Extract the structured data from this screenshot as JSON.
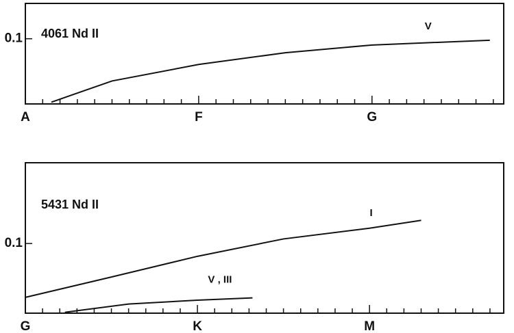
{
  "chart_data": [
    {
      "type": "line",
      "title": "4061 Nd II",
      "xticks": [
        {
          "value": 0,
          "label": "A"
        },
        {
          "value": 1,
          "label": "F"
        },
        {
          "value": 2,
          "label": "G"
        }
      ],
      "xminorticks": [
        0.1,
        0.2,
        0.3,
        0.4,
        0.5,
        0.6,
        0.7,
        0.8,
        0.9,
        1.1,
        1.2,
        1.3,
        1.4,
        1.5,
        1.6,
        1.7,
        1.8,
        1.9,
        2.1,
        2.2,
        2.3,
        2.4,
        2.5,
        2.6,
        2.7
      ],
      "xlim": [
        0,
        2.76
      ],
      "ylim": [
        0.042,
        0.16
      ],
      "yticks": [
        0.1
      ],
      "log_y": true,
      "series": [
        {
          "name": "V",
          "color": "#111111",
          "x": [
            0.15,
            0.5,
            1,
            1.5,
            2,
            2.68
          ],
          "values": [
            0.043,
            0.057,
            0.071,
            0.083,
            0.092,
            0.098
          ]
        }
      ]
    },
    {
      "type": "line",
      "title": "5431 Nd II",
      "xticks": [
        {
          "value": 0,
          "label": "G"
        },
        {
          "value": 1,
          "label": "K"
        },
        {
          "value": 2,
          "label": "M"
        }
      ],
      "xminorticks": [
        0.1,
        0.2,
        0.3,
        0.4,
        0.5,
        0.6,
        0.7,
        0.8,
        0.9,
        1.1,
        1.2,
        1.3,
        1.4,
        1.5,
        1.6,
        1.7,
        1.8,
        1.9,
        2.1,
        2.2,
        2.3,
        2.4,
        2.5,
        2.6,
        2.7
      ],
      "xlim": [
        0,
        2.78
      ],
      "ylim": [
        0.055,
        0.2
      ],
      "yticks": [
        0.1
      ],
      "log_y": true,
      "series": [
        {
          "name": "I",
          "color": "#111111",
          "x": [
            0,
            0.5,
            1,
            1.5,
            2,
            2.3
          ],
          "values": [
            0.063,
            0.075,
            0.0896,
            0.104,
            0.114,
            0.122
          ]
        },
        {
          "name": "V , III",
          "color": "#111111",
          "x": [
            0.23,
            0.6,
            1,
            1.32
          ],
          "values": [
            0.0554,
            0.0595,
            0.0615,
            0.0627
          ]
        }
      ]
    }
  ]
}
